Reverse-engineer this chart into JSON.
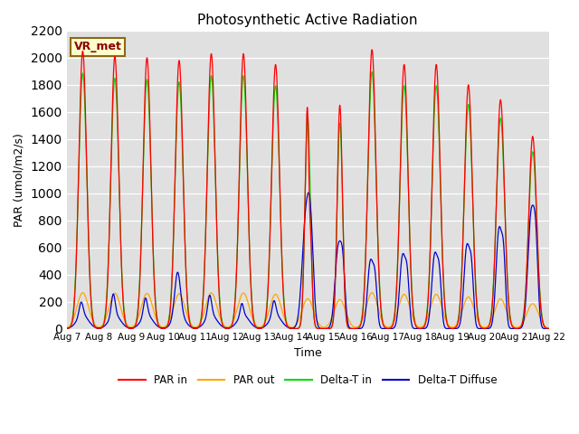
{
  "title": "Photosynthetic Active Radiation",
  "xlabel": "Time",
  "ylabel": "PAR (umol/m2/s)",
  "ylim": [
    0,
    2200
  ],
  "source_label": "VR_met",
  "legend_entries": [
    "PAR in",
    "PAR out",
    "Delta-T in",
    "Delta-T Diffuse"
  ],
  "legend_colors": [
    "#ff0000",
    "#ffa500",
    "#00dd00",
    "#0000cc"
  ],
  "background_color": "#e0e0e0",
  "n_days": 15,
  "start_day": 7,
  "yticks": [
    0,
    200,
    400,
    600,
    800,
    1000,
    1200,
    1400,
    1600,
    1800,
    2000,
    2200
  ],
  "par_in_amps": [
    2050,
    2010,
    2000,
    1980,
    2030,
    2030,
    1950,
    1700,
    1650,
    2060,
    1950,
    1950,
    1800,
    1690,
    1420
  ],
  "par_in_widths": [
    0.12,
    0.12,
    0.12,
    0.12,
    0.12,
    0.12,
    0.12,
    0.08,
    0.08,
    0.12,
    0.12,
    0.12,
    0.12,
    0.12,
    0.12
  ],
  "diff_amps": [
    100,
    160,
    130,
    320,
    150,
    90,
    110,
    820,
    590,
    490,
    530,
    540,
    600,
    720,
    830
  ],
  "diff_widths": [
    0.06,
    0.06,
    0.06,
    0.09,
    0.06,
    0.05,
    0.06,
    0.12,
    0.1,
    0.09,
    0.09,
    0.09,
    0.09,
    0.09,
    0.1
  ]
}
